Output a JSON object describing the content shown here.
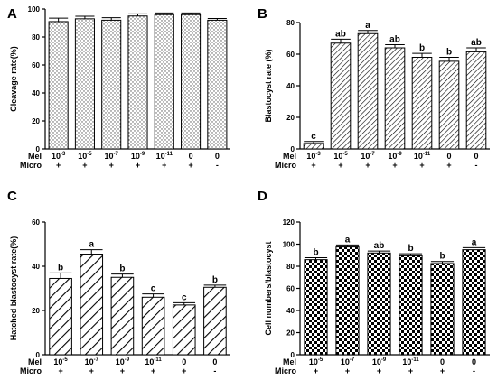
{
  "chart_data": [
    {
      "panel": "A",
      "type": "bar",
      "ylabel": "Cleavage rate(%)",
      "ylim": [
        0,
        100
      ],
      "yticks": [
        0,
        20,
        40,
        60,
        80,
        100
      ],
      "pattern": "dots",
      "rows": [
        {
          "label": "Mel",
          "values": [
            "10-3",
            "10-5",
            "10-7",
            "10-9",
            "10-11",
            "0",
            "0"
          ]
        },
        {
          "label": "Micro",
          "values": [
            "+",
            "+",
            "+",
            "+",
            "+",
            "+",
            "-"
          ]
        }
      ],
      "values": [
        91,
        93,
        92,
        95,
        96,
        96,
        92
      ],
      "errors": [
        2.5,
        1.8,
        1.8,
        1.5,
        1.2,
        1.2,
        1.2
      ],
      "letters": [
        "",
        "",
        "",
        "",
        "",
        "",
        ""
      ]
    },
    {
      "panel": "B",
      "type": "bar",
      "ylabel": "Blastocyst rate (%)",
      "ylim": [
        0,
        80
      ],
      "yticks": [
        0,
        20,
        40,
        60,
        80
      ],
      "pattern": "diagonal-fine",
      "rows": [
        {
          "label": "Mel",
          "values": [
            "10-3",
            "10-5",
            "10-7",
            "10-9",
            "10-11",
            "0",
            "0"
          ]
        },
        {
          "label": "Micro",
          "values": [
            "+",
            "+",
            "+",
            "+",
            "+",
            "+",
            "-"
          ]
        }
      ],
      "values": [
        3.5,
        67,
        73,
        64,
        58,
        55.5,
        61.5
      ],
      "errors": [
        1.2,
        2.5,
        2.0,
        2.0,
        2.5,
        2.5,
        2.5
      ],
      "letters": [
        "c",
        "ab",
        "a",
        "ab",
        "b",
        "b",
        "ab"
      ]
    },
    {
      "panel": "C",
      "type": "bar",
      "ylabel": "Hatched blastocyst rate(%)",
      "ylim": [
        0,
        60
      ],
      "yticks": [
        0,
        20,
        40,
        60
      ],
      "pattern": "diagonal-wide",
      "rows": [
        {
          "label": "Mel",
          "values": [
            "10-5",
            "10-7",
            "10-9",
            "10-11",
            "0",
            "0"
          ]
        },
        {
          "label": "Micro",
          "values": [
            "+",
            "+",
            "+",
            "+",
            "+",
            "-"
          ]
        }
      ],
      "values": [
        34.5,
        45.5,
        35,
        26,
        22.5,
        30.5
      ],
      "errors": [
        2.5,
        2.0,
        1.5,
        1.5,
        1.0,
        1.0
      ],
      "letters": [
        "b",
        "a",
        "b",
        "c",
        "c",
        "b"
      ]
    },
    {
      "panel": "D",
      "type": "bar",
      "ylabel": "Cell numbers/blastocyst",
      "ylim": [
        0,
        120
      ],
      "yticks": [
        0,
        20,
        40,
        60,
        80,
        100,
        120
      ],
      "pattern": "checker",
      "rows": [
        {
          "label": "Mel",
          "values": [
            "10-5",
            "10-7",
            "10-9",
            "10-11",
            "0",
            "0"
          ]
        },
        {
          "label": "Micro",
          "values": [
            "+",
            "+",
            "+",
            "+",
            "+",
            "-"
          ]
        }
      ],
      "values": [
        86,
        97.5,
        92,
        89.5,
        82.5,
        95
      ],
      "errors": [
        1.8,
        1.8,
        1.8,
        1.8,
        1.8,
        1.8
      ],
      "letters": [
        "b",
        "a",
        "ab",
        "b",
        "b",
        "a"
      ]
    }
  ]
}
